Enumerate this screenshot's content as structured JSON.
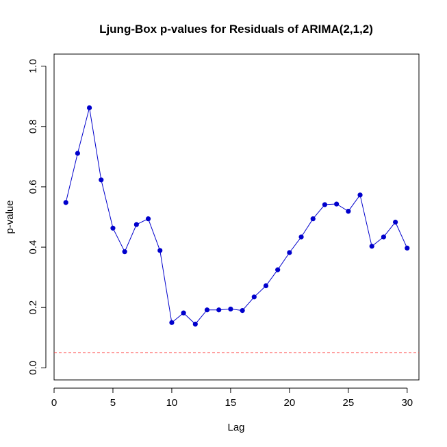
{
  "chart_data": {
    "type": "line",
    "title": "Ljung-Box p-values for Residuals of ARIMA(2,1,2)",
    "xlabel": "Lag",
    "ylabel": "p-value",
    "xlim": [
      0,
      31
    ],
    "ylim": [
      -0.04,
      1.04
    ],
    "x_ticks": [
      0,
      5,
      10,
      15,
      20,
      25,
      30
    ],
    "y_ticks": [
      0.0,
      0.2,
      0.4,
      0.6,
      0.8,
      1.0
    ],
    "x_tick_labels": [
      "0",
      "5",
      "10",
      "15",
      "20",
      "25",
      "30"
    ],
    "y_tick_labels": [
      "0.0",
      "0.2",
      "0.4",
      "0.6",
      "0.8",
      "1.0"
    ],
    "grid": false,
    "series": [
      {
        "name": "p-value",
        "color": "#0000cc",
        "marker": "circle",
        "x": [
          1,
          2,
          3,
          4,
          5,
          6,
          7,
          8,
          9,
          10,
          11,
          12,
          13,
          14,
          15,
          16,
          17,
          18,
          19,
          20,
          21,
          22,
          23,
          24,
          25,
          26,
          27,
          28,
          29,
          30
        ],
        "values": [
          0.548,
          0.711,
          0.862,
          0.623,
          0.463,
          0.385,
          0.475,
          0.494,
          0.389,
          0.15,
          0.182,
          0.145,
          0.192,
          0.192,
          0.195,
          0.19,
          0.235,
          0.272,
          0.325,
          0.382,
          0.434,
          0.494,
          0.541,
          0.543,
          0.519,
          0.573,
          0.403,
          0.434,
          0.483,
          0.397
        ]
      }
    ],
    "reference_line": {
      "y": 0.05,
      "color": "#ff3333",
      "style": "dashed"
    }
  }
}
